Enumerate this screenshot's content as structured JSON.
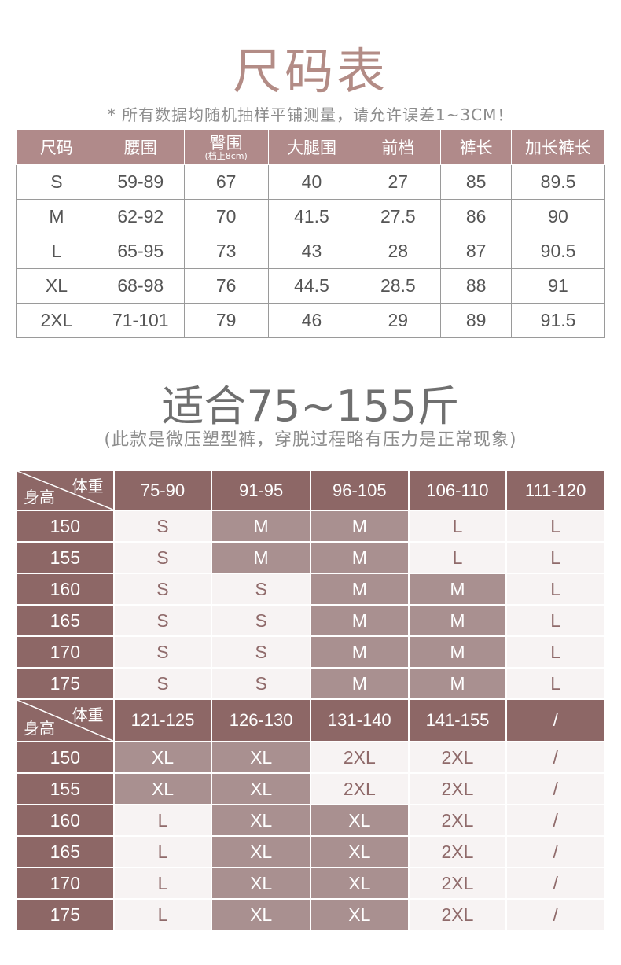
{
  "title": "尺码表",
  "note": "* 所有数据均随机抽样平铺测量，请允许误差1~3CM！",
  "size_table": {
    "headers": [
      "尺码",
      "腰围",
      "臀围",
      "大腿围",
      "前档",
      "裤长",
      "加长裤长"
    ],
    "hip_note": "(档上8cm)",
    "rows": [
      [
        "S",
        "59-89",
        "67",
        "40",
        "27",
        "85",
        "89.5"
      ],
      [
        "M",
        "62-92",
        "70",
        "41.5",
        "27.5",
        "86",
        "90"
      ],
      [
        "L",
        "65-95",
        "73",
        "43",
        "28",
        "87",
        "90.5"
      ],
      [
        "XL",
        "68-98",
        "76",
        "44.5",
        "28.5",
        "88",
        "91"
      ],
      [
        "2XL",
        "71-101",
        "79",
        "46",
        "29",
        "89",
        "91.5"
      ]
    ]
  },
  "fit_title": "适合75~155斤",
  "fit_note": "(此款是微压塑型裤，穿脱过程略有压力是正常现象)",
  "fit_tables": [
    {
      "weight_label": "体重",
      "height_label": "身高",
      "weights": [
        "75-90",
        "91-95",
        "96-105",
        "106-110",
        "111-120"
      ],
      "rows": [
        {
          "height": "150",
          "sizes": [
            "S",
            "M",
            "M",
            "L",
            "L"
          ],
          "highlight": [
            1,
            2
          ]
        },
        {
          "height": "155",
          "sizes": [
            "S",
            "M",
            "M",
            "L",
            "L"
          ],
          "highlight": [
            1,
            2
          ]
        },
        {
          "height": "160",
          "sizes": [
            "S",
            "S",
            "M",
            "M",
            "L"
          ],
          "highlight": [
            2,
            3
          ]
        },
        {
          "height": "165",
          "sizes": [
            "S",
            "S",
            "M",
            "M",
            "L"
          ],
          "highlight": [
            2,
            3
          ]
        },
        {
          "height": "170",
          "sizes": [
            "S",
            "S",
            "M",
            "M",
            "L"
          ],
          "highlight": [
            2,
            3
          ]
        },
        {
          "height": "175",
          "sizes": [
            "S",
            "S",
            "M",
            "M",
            "L"
          ],
          "highlight": [
            2,
            3
          ]
        }
      ]
    },
    {
      "weight_label": "体重",
      "height_label": "身高",
      "weights": [
        "121-125",
        "126-130",
        "131-140",
        "141-155",
        "/"
      ],
      "rows": [
        {
          "height": "150",
          "sizes": [
            "XL",
            "XL",
            "2XL",
            "2XL",
            "/"
          ],
          "highlight": [
            0,
            1
          ]
        },
        {
          "height": "155",
          "sizes": [
            "XL",
            "XL",
            "2XL",
            "2XL",
            "/"
          ],
          "highlight": [
            0,
            1
          ]
        },
        {
          "height": "160",
          "sizes": [
            "L",
            "XL",
            "XL",
            "2XL",
            "/"
          ],
          "highlight": [
            1,
            2
          ]
        },
        {
          "height": "165",
          "sizes": [
            "L",
            "XL",
            "XL",
            "2XL",
            "/"
          ],
          "highlight": [
            1,
            2
          ]
        },
        {
          "height": "170",
          "sizes": [
            "L",
            "XL",
            "XL",
            "2XL",
            "/"
          ],
          "highlight": [
            1,
            2
          ]
        },
        {
          "height": "175",
          "sizes": [
            "L",
            "XL",
            "XL",
            "2XL",
            "/"
          ],
          "highlight": [
            1,
            2
          ]
        }
      ]
    }
  ],
  "colors": {
    "header": "#b08a8a",
    "dark_header": "#8d6766",
    "highlight": "#a99090",
    "cell": "#f7f3f3",
    "title": "#b38c86"
  }
}
